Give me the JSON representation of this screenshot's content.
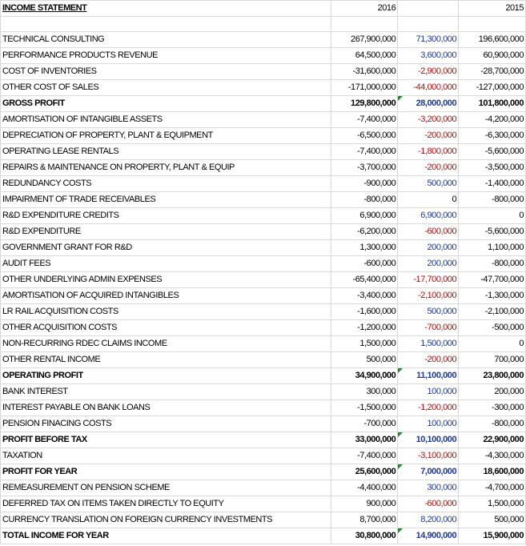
{
  "header": {
    "title": "INCOME STATEMENT",
    "year_current": "2016",
    "year_change": "",
    "year_prior": "2015"
  },
  "rows": [
    {
      "label": "TECHNICAL CONSULTING",
      "y2016": "267,900,000",
      "diff": "71,300,000",
      "sign": "pos",
      "y2015": "196,600,000",
      "bold": false,
      "flag": false
    },
    {
      "label": "PERFORMANCE PRODUCTS REVENUE",
      "y2016": "64,500,000",
      "diff": "3,600,000",
      "sign": "pos",
      "y2015": "60,900,000",
      "bold": false,
      "flag": false
    },
    {
      "label": "COST OF INVENTORIES",
      "y2016": "-31,600,000",
      "diff": "-2,900,000",
      "sign": "neg",
      "y2015": "-28,700,000",
      "bold": false,
      "flag": false
    },
    {
      "label": "OTHER COST OF SALES",
      "y2016": "-171,000,000",
      "diff": "-44,000,000",
      "sign": "neg",
      "y2015": "-127,000,000",
      "bold": false,
      "flag": false
    },
    {
      "label": "GROSS PROFIT",
      "y2016": "129,800,000",
      "diff": "28,000,000",
      "sign": "pos",
      "y2015": "101,800,000",
      "bold": true,
      "flag": true
    },
    {
      "label": "AMORTISATION OF INTANGIBLE ASSETS",
      "y2016": "-7,400,000",
      "diff": "-3,200,000",
      "sign": "neg",
      "y2015": "-4,200,000",
      "bold": false,
      "flag": false
    },
    {
      "label": "DEPRECIATION OF PROPERTY, PLANT & EQUIPMENT",
      "y2016": "-6,500,000",
      "diff": "-200,000",
      "sign": "neg",
      "y2015": "-6,300,000",
      "bold": false,
      "flag": false
    },
    {
      "label": "OPERATING LEASE RENTALS",
      "y2016": "-7,400,000",
      "diff": "-1,800,000",
      "sign": "neg",
      "y2015": "-5,600,000",
      "bold": false,
      "flag": false
    },
    {
      "label": "REPAIRS & MAINTENANCE ON PROPERTY, PLANT & EQUIP",
      "y2016": "-3,700,000",
      "diff": "-200,000",
      "sign": "neg",
      "y2015": "-3,500,000",
      "bold": false,
      "flag": false
    },
    {
      "label": "REDUNDANCY COSTS",
      "y2016": "-900,000",
      "diff": "500,000",
      "sign": "pos",
      "y2015": "-1,400,000",
      "bold": false,
      "flag": false
    },
    {
      "label": "IMPAIRMENT OF TRADE RECEIVABLES",
      "y2016": "-800,000",
      "diff": "0",
      "sign": "zero",
      "y2015": "-800,000",
      "bold": false,
      "flag": false
    },
    {
      "label": "R&D EXPENDITURE CREDITS",
      "y2016": "6,900,000",
      "diff": "6,900,000",
      "sign": "pos",
      "y2015": "0",
      "bold": false,
      "flag": false
    },
    {
      "label": "R&D EXPENDITURE",
      "y2016": "-6,200,000",
      "diff": "-600,000",
      "sign": "neg",
      "y2015": "-5,600,000",
      "bold": false,
      "flag": false
    },
    {
      "label": "GOVERNMENT GRANT FOR R&D",
      "y2016": "1,300,000",
      "diff": "200,000",
      "sign": "pos",
      "y2015": "1,100,000",
      "bold": false,
      "flag": false
    },
    {
      "label": "AUDIT FEES",
      "y2016": "-600,000",
      "diff": "200,000",
      "sign": "pos",
      "y2015": "-800,000",
      "bold": false,
      "flag": false
    },
    {
      "label": "OTHER UNDERLYING ADMIN EXPENSES",
      "y2016": "-65,400,000",
      "diff": "-17,700,000",
      "sign": "neg",
      "y2015": "-47,700,000",
      "bold": false,
      "flag": false
    },
    {
      "label": "AMORTISATION OF ACQUIRED INTANGIBLES",
      "y2016": "-3,400,000",
      "diff": "-2,100,000",
      "sign": "neg",
      "y2015": "-1,300,000",
      "bold": false,
      "flag": false
    },
    {
      "label": "LR RAIL ACQUISITION COSTS",
      "y2016": "-1,600,000",
      "diff": "500,000",
      "sign": "pos",
      "y2015": "-2,100,000",
      "bold": false,
      "flag": false
    },
    {
      "label": "OTHER ACQUISITION COSTS",
      "y2016": "-1,200,000",
      "diff": "-700,000",
      "sign": "neg",
      "y2015": "-500,000",
      "bold": false,
      "flag": false
    },
    {
      "label": "NON-RECURRING RDEC CLAIMS INCOME",
      "y2016": "1,500,000",
      "diff": "1,500,000",
      "sign": "pos",
      "y2015": "0",
      "bold": false,
      "flag": false
    },
    {
      "label": "OTHER RENTAL INCOME",
      "y2016": "500,000",
      "diff": "-200,000",
      "sign": "neg",
      "y2015": "700,000",
      "bold": false,
      "flag": false
    },
    {
      "label": "OPERATING PROFIT",
      "y2016": "34,900,000",
      "diff": "11,100,000",
      "sign": "pos",
      "y2015": "23,800,000",
      "bold": true,
      "flag": true
    },
    {
      "label": "BANK INTEREST",
      "y2016": "300,000",
      "diff": "100,000",
      "sign": "pos",
      "y2015": "200,000",
      "bold": false,
      "flag": false
    },
    {
      "label": "INTEREST PAYABLE ON BANK LOANS",
      "y2016": "-1,500,000",
      "diff": "-1,200,000",
      "sign": "neg",
      "y2015": "-300,000",
      "bold": false,
      "flag": false
    },
    {
      "label": "PENSION FINACING COSTS",
      "y2016": "-700,000",
      "diff": "100,000",
      "sign": "pos",
      "y2015": "-800,000",
      "bold": false,
      "flag": false
    },
    {
      "label": "PROFIT BEFORE TAX",
      "y2016": "33,000,000",
      "diff": "10,100,000",
      "sign": "pos",
      "y2015": "22,900,000",
      "bold": true,
      "flag": true
    },
    {
      "label": "TAXATION",
      "y2016": "-7,400,000",
      "diff": "-3,100,000",
      "sign": "neg",
      "y2015": "-4,300,000",
      "bold": false,
      "flag": false
    },
    {
      "label": "PROFIT FOR YEAR",
      "y2016": "25,600,000",
      "diff": "7,000,000",
      "sign": "pos",
      "y2015": "18,600,000",
      "bold": true,
      "flag": true
    },
    {
      "label": "REMEASUREMENT ON PENSION SCHEME",
      "y2016": "-4,400,000",
      "diff": "300,000",
      "sign": "pos",
      "y2015": "-4,700,000",
      "bold": false,
      "flag": false
    },
    {
      "label": "DEFERRED TAX ON ITEMS TAKEN DIRECTLY TO EQUITY",
      "y2016": "900,000",
      "diff": "-600,000",
      "sign": "neg",
      "y2015": "1,500,000",
      "bold": false,
      "flag": false
    },
    {
      "label": "CURRENCY TRANSLATION ON FOREIGN CURRENCY INVESTMENTS",
      "y2016": "8,700,000",
      "diff": "8,200,000",
      "sign": "pos",
      "y2015": "500,000",
      "bold": false,
      "flag": false
    },
    {
      "label": "TOTAL INCOME FOR YEAR",
      "y2016": "30,800,000",
      "diff": "14,900,000",
      "sign": "pos",
      "y2015": "15,900,000",
      "bold": true,
      "flag": true
    }
  ],
  "colors": {
    "positive_change": "#1f3a9b",
    "negative_change": "#b01010",
    "gridline": "#d9d9d9",
    "formula_flag": "#1e8a2e"
  }
}
